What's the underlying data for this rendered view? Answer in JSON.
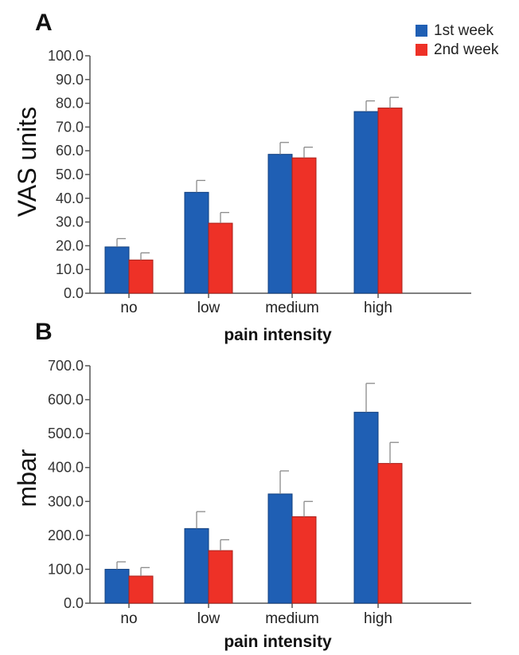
{
  "legend": [
    {
      "label": "1st week",
      "color": "#1f5fb4"
    },
    {
      "label": "2nd week",
      "color": "#ee3127"
    }
  ],
  "chart_data": [
    {
      "type": "bar",
      "panel": "A",
      "categories": [
        "no",
        "low",
        "medium",
        "high"
      ],
      "series": [
        {
          "name": "1st week",
          "color": "#1f5fb4",
          "values": [
            19.5,
            42.5,
            58.5,
            76.5
          ],
          "errors": [
            3.5,
            5.0,
            5.0,
            4.5
          ]
        },
        {
          "name": "2nd week",
          "color": "#ee3127",
          "values": [
            14.0,
            29.5,
            57.0,
            78.0
          ],
          "errors": [
            3.0,
            4.5,
            4.5,
            4.5
          ]
        }
      ],
      "xlabel": "pain intensity",
      "ylabel": "VAS units",
      "ylim": [
        0,
        100
      ],
      "yticks": [
        "0.0",
        "10.0",
        "20.0",
        "30.0",
        "40.0",
        "50.0",
        "60.0",
        "70.0",
        "80.0",
        "90.0",
        "100.0"
      ],
      "legend_position": "top-right",
      "grid": false
    },
    {
      "type": "bar",
      "panel": "B",
      "categories": [
        "no",
        "low",
        "medium",
        "high"
      ],
      "series": [
        {
          "name": "1st week",
          "color": "#1f5fb4",
          "values": [
            100,
            220,
            322,
            563
          ],
          "errors": [
            22,
            50,
            68,
            85
          ]
        },
        {
          "name": "2nd week",
          "color": "#ee3127",
          "values": [
            80,
            155,
            255,
            412
          ],
          "errors": [
            25,
            32,
            45,
            62
          ]
        }
      ],
      "xlabel": "pain intensity",
      "ylabel": "mbar",
      "ylim": [
        0,
        700
      ],
      "yticks": [
        "0.0",
        "100.0",
        "200.0",
        "300.0",
        "400.0",
        "500.0",
        "600.0",
        "700.0"
      ],
      "grid": false
    }
  ]
}
